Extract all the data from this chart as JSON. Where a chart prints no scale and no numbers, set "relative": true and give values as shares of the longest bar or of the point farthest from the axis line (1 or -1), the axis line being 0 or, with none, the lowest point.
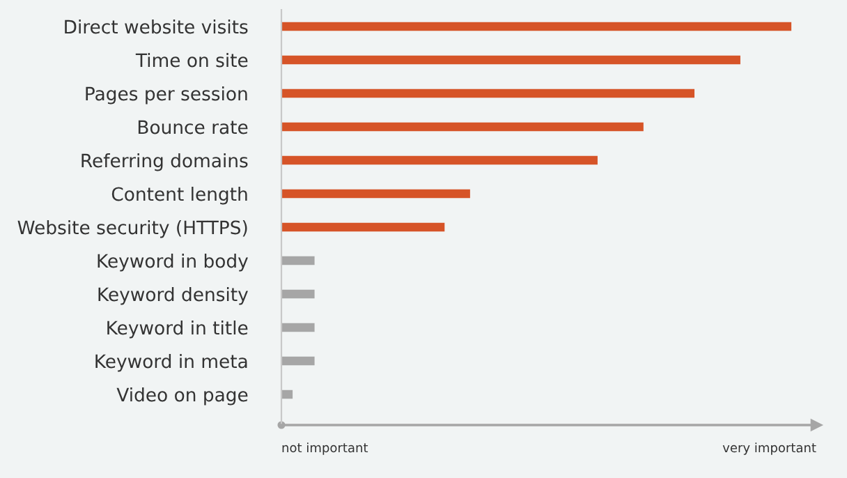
{
  "chart_data": {
    "type": "bar",
    "orientation": "horizontal",
    "relative": true,
    "categories": [
      "Direct website visits",
      "Time on site",
      "Pages per session",
      "Bounce rate",
      "Referring domains",
      "Content length",
      "Website security (HTTPS)",
      "Keyword in body",
      "Keyword density",
      "Keyword in title",
      "Keyword in meta",
      "Video on page"
    ],
    "values": [
      1,
      0.9,
      0.81,
      0.71,
      0.62,
      0.37,
      0.32,
      0.065,
      0.065,
      0.065,
      0.065,
      0.022
    ],
    "colors": [
      "#d65428",
      "#d65428",
      "#d65428",
      "#d65428",
      "#d65428",
      "#d65428",
      "#d65428",
      "#a6a6a6",
      "#a6a6a6",
      "#a6a6a6",
      "#a6a6a6",
      "#a6a6a6"
    ],
    "annotations": [
      "not important",
      "very important"
    ],
    "grid": false,
    "legend": false
  }
}
